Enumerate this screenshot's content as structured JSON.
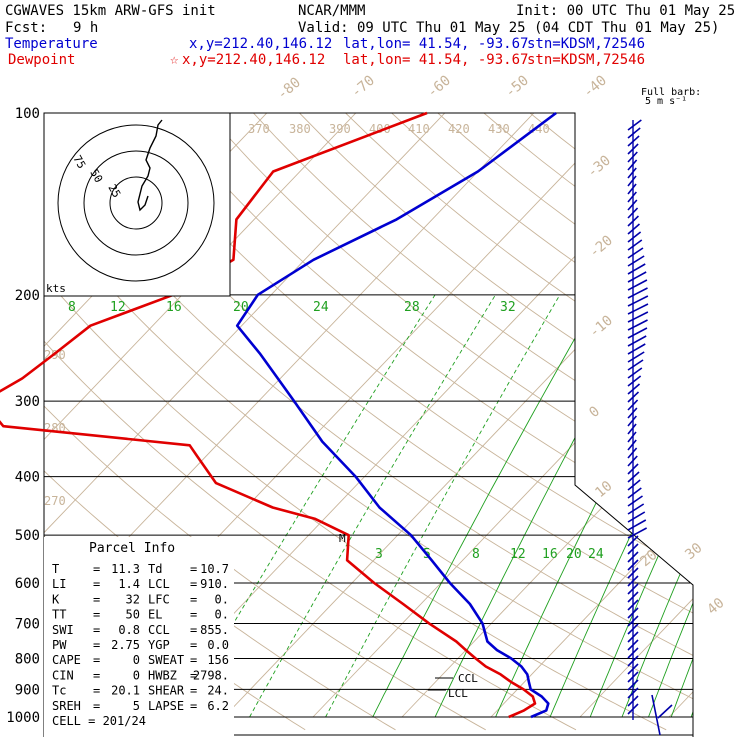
{
  "header": {
    "title_left": "CGWAVES 15km ARW-GFS init",
    "org": "NCAR/MMM",
    "init": "Init: 00 UTC Thu 01 May 25",
    "fcst_label": "Fcst:",
    "fcst_value": "9 h",
    "valid": "Valid: 09 UTC Thu 01 May 25 (04 CDT Thu 01 May 25)",
    "temp_label": "Temperature",
    "temp_loc": "x,y=212.40,146.12",
    "temp_latlon": "lat,lon= 41.54, -93.67",
    "temp_stn": "stn=KDSM,72546",
    "dew_label": "Dewpoint",
    "dew_loc": "x,y=212.40,146.12",
    "dew_latlon": "lat,lon= 41.54, -93.67",
    "dew_stn": "stn=KDSM,72546",
    "barb_legend_1": "Full barb:",
    "barb_legend_2": "5 m s⁻¹"
  },
  "colors": {
    "temperature": "#0000d0",
    "dewpoint": "#e00000",
    "isotherm": "#c8b49a",
    "mixing_ratio": "#20a020",
    "isobar": "#000000",
    "header_text": "#000000"
  },
  "chart_data": {
    "type": "line",
    "title": "CGWAVES 15km ARW-GFS init",
    "ylabel": "",
    "pressure_levels": [
      "100",
      "200",
      "300",
      "400",
      "500",
      "600",
      "700",
      "800",
      "900",
      "1000"
    ],
    "isotherm_labels": [
      "-80",
      "-70",
      "-60",
      "-50",
      "-40",
      "-30",
      "-20",
      "-10",
      "0",
      "10",
      "20",
      "30",
      "40"
    ],
    "theta_labels": [
      "370",
      "380",
      "390",
      "400",
      "410",
      "420",
      "430",
      "440",
      "290",
      "280",
      "270"
    ],
    "mixing_ratio_labels": [
      "8",
      "12",
      "16",
      "20",
      "24",
      "28",
      "32",
      "3",
      "5",
      "8",
      "12",
      "16",
      "20",
      "24"
    ],
    "wind_unit": "kts",
    "hodograph_rings": [
      "75",
      "50",
      "25"
    ],
    "series": [
      {
        "name": "Temperature",
        "pressure_hpa": [
          1000,
          975,
          950,
          925,
          900,
          875,
          850,
          825,
          800,
          775,
          750,
          700,
          650,
          600,
          550,
          500,
          450,
          400,
          350,
          300,
          250,
          225,
          200,
          175,
          150,
          125,
          100
        ],
        "values_c": [
          14.5,
          15.5,
          15.0,
          13.5,
          11.5,
          10.5,
          9.5,
          8.0,
          6.0,
          3.5,
          1.5,
          -1.0,
          -4.5,
          -9.0,
          -13.5,
          -18.5,
          -25.0,
          -31.0,
          -38.5,
          -46.0,
          -55.0,
          -60.5,
          -61.5,
          -59.0,
          -54.0,
          -50.0,
          -47.5
        ]
      },
      {
        "name": "Dewpoint",
        "pressure_hpa": [
          1000,
          975,
          950,
          925,
          900,
          875,
          850,
          825,
          800,
          775,
          750,
          700,
          650,
          600,
          550,
          500,
          470,
          450,
          410,
          370,
          355,
          330,
          300,
          275,
          250,
          225,
          200,
          175,
          150,
          125,
          100
        ],
        "values_c": [
          12.0,
          13.0,
          13.5,
          12.5,
          10.7,
          8.5,
          6.5,
          4.0,
          2.0,
          0.0,
          -2.0,
          -7.0,
          -12.0,
          -17.5,
          -23.0,
          -25.5,
          -31.0,
          -37.0,
          -46.0,
          -51.0,
          -53.0,
          -76.0,
          -81.0,
          -79.0,
          -78.0,
          -77.0,
          -71.0,
          -68.0,
          -72.0,
          -73.0,
          -62.0
        ]
      }
    ],
    "annotations": [
      "CCL",
      "LCL",
      "M"
    ],
    "parcel_info": {
      "title": "Parcel Info",
      "rows": [
        {
          "l1": "T",
          "v1": "11.3",
          "l2": "Td",
          "v2": "10.7"
        },
        {
          "l1": "LI",
          "v1": "1.4",
          "l2": "LCL",
          "v2": "910."
        },
        {
          "l1": "K",
          "v1": "32",
          "l2": "LFC",
          "v2": "0."
        },
        {
          "l1": "TT",
          "v1": "50",
          "l2": "EL",
          "v2": "0."
        },
        {
          "l1": "SWI",
          "v1": "0.8",
          "l2": "CCL",
          "v2": "855."
        },
        {
          "l1": "PW",
          "v1": "2.75",
          "l2": "YGP",
          "v2": "0.0"
        },
        {
          "l1": "CAPE",
          "v1": "0",
          "l2": "SWEAT",
          "v2": "156"
        },
        {
          "l1": "CIN",
          "v1": "0",
          "l2": "HWBZ",
          "v2": "2798."
        },
        {
          "l1": "Tc",
          "v1": "20.1",
          "l2": "SHEAR",
          "v2": "24."
        },
        {
          "l1": "SREH",
          "v1": "5",
          "l2": "LAPSE",
          "v2": "6.2"
        }
      ],
      "cell_label": "CELL",
      "cell_value": "201/24"
    }
  }
}
